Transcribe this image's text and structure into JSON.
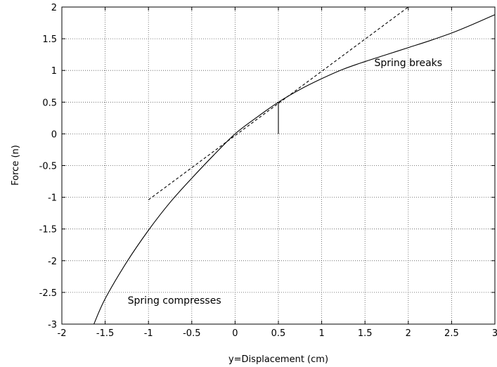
{
  "chart_data": {
    "type": "line",
    "title": "",
    "xlabel": "y=Displacement (cm)",
    "ylabel": "Force (n)",
    "xlim": [
      -2,
      3
    ],
    "ylim": [
      -3,
      2
    ],
    "grid": true,
    "grid_style": "dotted",
    "xticks": [
      "-2",
      "-1.5",
      "-1",
      "-0.5",
      "0",
      "0.5",
      "1",
      "1.5",
      "2",
      "2.5",
      "3"
    ],
    "yticks": [
      "-3",
      "-2.5",
      "-2",
      "-1.5",
      "-1",
      "-0.5",
      "0",
      "0.5",
      "1",
      "1.5",
      "2"
    ],
    "series": [
      {
        "style": "solid",
        "color": "#000000",
        "x": [
          -1.63,
          -1.5,
          -1.25,
          -1.0,
          -0.75,
          -0.5,
          -0.25,
          0.0,
          0.25,
          0.5,
          0.75,
          1.0,
          1.25,
          1.5,
          1.75,
          2.0,
          2.25,
          2.5,
          2.75,
          3.0
        ],
        "y": [
          -3.0,
          -2.6,
          -2.02,
          -1.52,
          -1.08,
          -0.7,
          -0.34,
          0.0,
          0.26,
          0.5,
          0.7,
          0.87,
          1.02,
          1.14,
          1.25,
          1.36,
          1.47,
          1.59,
          1.73,
          1.88
        ]
      },
      {
        "style": "dashed",
        "color": "#000000",
        "x": [
          -1.0,
          2.0
        ],
        "y": [
          -1.04,
          2.0
        ]
      },
      {
        "style": "solid",
        "color": "#000000",
        "x": [
          0.5,
          0.5
        ],
        "y": [
          0.0,
          0.5
        ]
      }
    ],
    "annotations": [
      {
        "text": "Spring breaks",
        "x": 2.0,
        "y": 1.07,
        "anchor": "middle"
      },
      {
        "text": "Spring compresses",
        "x": -0.7,
        "y": -2.68,
        "anchor": "middle"
      }
    ]
  }
}
